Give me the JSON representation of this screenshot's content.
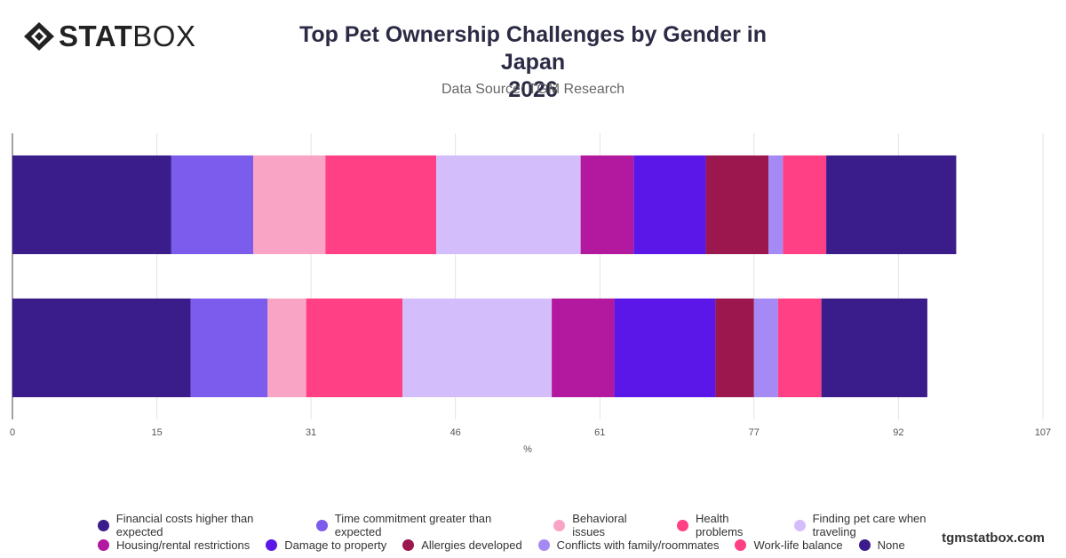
{
  "header": {
    "logo_bold": "STAT",
    "logo_light": "BOX",
    "title_line1": "Top Pet Ownership Challenges by Gender in Japan",
    "title_line2": "2026",
    "subtitle": "Data Source: TGM Research"
  },
  "footer": {
    "brand": "tgmstatbox.com"
  },
  "chart_data": {
    "type": "bar",
    "orientation": "horizontal",
    "stacked": true,
    "categories": [
      "",
      ""
    ],
    "xlabel": "%",
    "xlim": [
      0,
      107
    ],
    "xticks": [
      0,
      15,
      31,
      46,
      61,
      77,
      92,
      107
    ],
    "grid": true,
    "legend_position": "bottom",
    "series": [
      {
        "name": "Financial costs higher than expected",
        "color": "#3a1d8a",
        "values": [
          16.5,
          18.5
        ]
      },
      {
        "name": "Time commitment greater than expected",
        "color": "#7b5cec",
        "values": [
          8.5,
          8.0
        ]
      },
      {
        "name": "Behavioral issues",
        "color": "#f9a4c4",
        "values": [
          7.5,
          4.0
        ]
      },
      {
        "name": "Health problems",
        "color": "#ff4085",
        "values": [
          11.5,
          10.0
        ]
      },
      {
        "name": "Finding pet care when traveling",
        "color": "#d4bdfb",
        "values": [
          15.0,
          15.5
        ]
      },
      {
        "name": "Housing/rental restrictions",
        "color": "#b3199f",
        "values": [
          5.5,
          6.5
        ]
      },
      {
        "name": "Damage to property",
        "color": "#5a17e8",
        "values": [
          7.5,
          10.5
        ]
      },
      {
        "name": "Allergies developed",
        "color": "#9c174d",
        "values": [
          6.5,
          4.0
        ]
      },
      {
        "name": "Conflicts with family/roommates",
        "color": "#a58af5",
        "values": [
          1.5,
          2.5
        ]
      },
      {
        "name": "Work-life balance",
        "color": "#ff4085",
        "values": [
          4.5,
          4.5
        ]
      },
      {
        "name": "None",
        "color": "#3a1d8a",
        "values": [
          13.5,
          11.0
        ]
      }
    ]
  }
}
